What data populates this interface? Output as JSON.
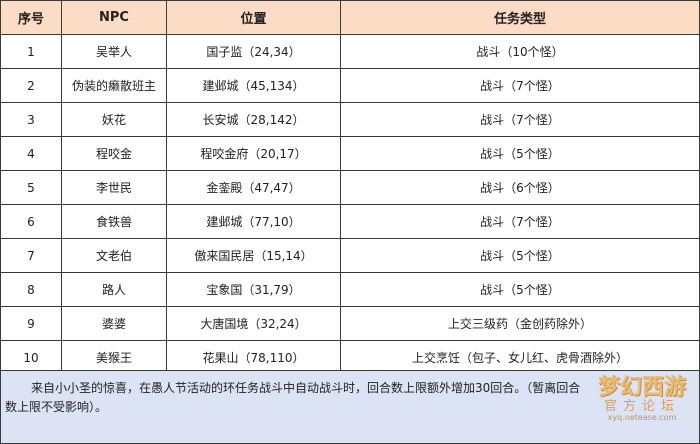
{
  "headers": [
    "序号",
    "NPC",
    "位置",
    "任务类型"
  ],
  "rows": [
    [
      "1",
      "吴举人",
      "国子监（24,34）",
      "战斗（10个怪）"
    ],
    [
      "2",
      "伪装的癞散班主",
      "建邺城（45,134）",
      "战斗（7个怪）"
    ],
    [
      "3",
      "妖花",
      "长安城（28,142）",
      "战斗（7个怪）"
    ],
    [
      "4",
      "程咬金",
      "程咬金府（20,17）",
      "战斗（5个怪）"
    ],
    [
      "5",
      "李世民",
      "金銮殿（47,47）",
      "战斗（6个怪）"
    ],
    [
      "6",
      "食铁兽",
      "建邺城（77,10）",
      "战斗（7个怪）"
    ],
    [
      "7",
      "文老伯",
      "傲来国民居（15,14）",
      "战斗（5个怪）"
    ],
    [
      "8",
      "路人",
      "宝象国（31,79）",
      "战斗（5个怪）"
    ],
    [
      "9",
      "婆婆",
      "大唐国境（32,24）",
      "上交三级药（金创药除外）"
    ],
    [
      "10",
      "美猴王",
      "花果山（78,110）",
      "上交烹饪（包子、女儿红、虎骨酒除外）"
    ]
  ],
  "note": "来自小小圣的惊喜，在愚人节活动的环任务战斗中自动战斗时，回合数上限额外增加30回合。（暂离回合数上限不受影响）。",
  "watermark": {
    "logo": "梦幻西游",
    "sub": "官方论坛",
    "url": "xyq.netease.com"
  }
}
